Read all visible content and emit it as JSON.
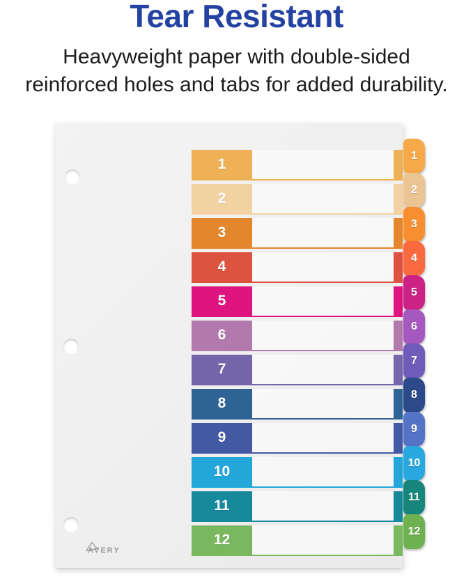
{
  "header": {
    "title": "Tear Resistant",
    "subtitle_line1": "Heavyweight paper with double-sided",
    "subtitle_line2": "reinforced holes and tabs for added durability.",
    "title_color": "#2342A2",
    "subtitle_color": "#1C1C1C"
  },
  "product": {
    "brand": "AVERY",
    "sheet_color": "#EFEFEF",
    "tab_count": 12,
    "rows": [
      {
        "label": "1",
        "block_color": "#EFB156",
        "tab_color": "#F5A948"
      },
      {
        "label": "2",
        "block_color": "#F2D2A2",
        "tab_color": "#EBC493"
      },
      {
        "label": "3",
        "block_color": "#E4862B",
        "tab_color": "#F78F30"
      },
      {
        "label": "4",
        "block_color": "#DC5340",
        "tab_color": "#F96A3F"
      },
      {
        "label": "5",
        "block_color": "#DE1480",
        "tab_color": "#CC2285"
      },
      {
        "label": "6",
        "block_color": "#B279AD",
        "tab_color": "#A558BE"
      },
      {
        "label": "7",
        "block_color": "#7566AB",
        "tab_color": "#6F5BB8"
      },
      {
        "label": "8",
        "block_color": "#2E6396",
        "tab_color": "#2C4A89"
      },
      {
        "label": "9",
        "block_color": "#4459A4",
        "tab_color": "#5573C6"
      },
      {
        "label": "10",
        "block_color": "#23A7DB",
        "tab_color": "#29A8E0"
      },
      {
        "label": "11",
        "block_color": "#16899B",
        "tab_color": "#16857B"
      },
      {
        "label": "12",
        "block_color": "#79B85F",
        "tab_color": "#6DB150"
      }
    ]
  }
}
